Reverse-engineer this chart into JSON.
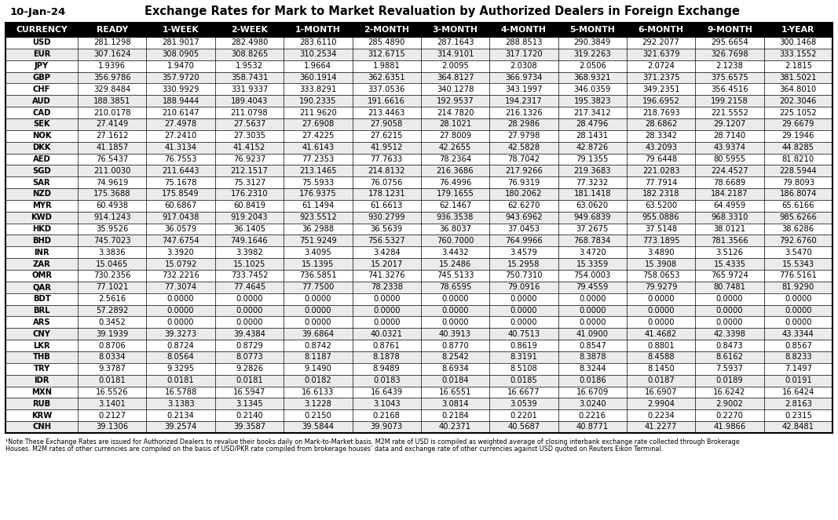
{
  "title": "Exchange Rates for Mark to Market Revaluation by Authorized Dealers in Foreign Exchange",
  "date": "10-Jan-24",
  "columns": [
    "CURRENCY",
    "READY",
    "1-WEEK",
    "2-WEEK",
    "1-MONTH",
    "2-MONTH",
    "3-MONTH",
    "4-MONTH",
    "5-MONTH",
    "6-MONTH",
    "9-MONTH",
    "1-YEAR"
  ],
  "rows": [
    [
      "USD",
      "281.1298",
      "281.9017",
      "282.4980",
      "283.6110",
      "285.4890",
      "287.1643",
      "288.8513",
      "290.3849",
      "292.2077",
      "295.6654",
      "300.1468"
    ],
    [
      "EUR",
      "307.1624",
      "308.0905",
      "308.8265",
      "310.2534",
      "312.6715",
      "314.9101",
      "317.1720",
      "319.2263",
      "321.6379",
      "326.7698",
      "333.1552"
    ],
    [
      "JPY",
      "1.9396",
      "1.9470",
      "1.9532",
      "1.9664",
      "1.9881",
      "2.0095",
      "2.0308",
      "2.0506",
      "2.0724",
      "2.1238",
      "2.1815"
    ],
    [
      "GBP",
      "356.9786",
      "357.9720",
      "358.7431",
      "360.1914",
      "362.6351",
      "364.8127",
      "366.9734",
      "368.9321",
      "371.2375",
      "375.6575",
      "381.5021"
    ],
    [
      "CHF",
      "329.8484",
      "330.9929",
      "331.9337",
      "333.8291",
      "337.0536",
      "340.1278",
      "343.1997",
      "346.0359",
      "349.2351",
      "356.4516",
      "364.8010"
    ],
    [
      "AUD",
      "188.3851",
      "188.9444",
      "189.4043",
      "190.2335",
      "191.6616",
      "192.9537",
      "194.2317",
      "195.3823",
      "196.6952",
      "199.2158",
      "202.3046"
    ],
    [
      "CAD",
      "210.0178",
      "210.6147",
      "211.0798",
      "211.9620",
      "213.4463",
      "214.7820",
      "216.1326",
      "217.3412",
      "218.7693",
      "221.5552",
      "225.1052"
    ],
    [
      "SEK",
      "27.4149",
      "27.4978",
      "27.5637",
      "27.6908",
      "27.9058",
      "28.1021",
      "28.2986",
      "28.4796",
      "28.6862",
      "29.1207",
      "29.6679"
    ],
    [
      "NOK",
      "27.1612",
      "27.2410",
      "27.3035",
      "27.4225",
      "27.6215",
      "27.8009",
      "27.9798",
      "28.1431",
      "28.3342",
      "28.7140",
      "29.1946"
    ],
    [
      "DKK",
      "41.1857",
      "41.3134",
      "41.4152",
      "41.6143",
      "41.9512",
      "42.2655",
      "42.5828",
      "42.8726",
      "43.2093",
      "43.9374",
      "44.8285"
    ],
    [
      "AED",
      "76.5437",
      "76.7553",
      "76.9237",
      "77.2353",
      "77.7633",
      "78.2364",
      "78.7042",
      "79.1355",
      "79.6448",
      "80.5955",
      "81.8210"
    ],
    [
      "SGD",
      "211.0030",
      "211.6443",
      "212.1517",
      "213.1465",
      "214.8132",
      "216.3686",
      "217.9266",
      "219.3683",
      "221.0283",
      "224.4527",
      "228.5944"
    ],
    [
      "SAR",
      "74.9619",
      "75.1678",
      "75.3127",
      "75.5933",
      "76.0756",
      "76.4996",
      "76.9319",
      "77.3232",
      "77.7914",
      "78.6689",
      "79.8093"
    ],
    [
      "NZD",
      "175.3688",
      "175.8549",
      "176.2310",
      "176.9375",
      "178.1231",
      "179.1655",
      "180.2062",
      "181.1418",
      "182.2318",
      "184.2187",
      "186.8074"
    ],
    [
      "MYR",
      "60.4938",
      "60.6867",
      "60.8419",
      "61.1494",
      "61.6613",
      "62.1467",
      "62.6270",
      "63.0620",
      "63.5200",
      "64.4959",
      "65.6166"
    ],
    [
      "KWD",
      "914.1243",
      "917.0438",
      "919.2043",
      "923.5512",
      "930.2799",
      "936.3538",
      "943.6962",
      "949.6839",
      "955.0886",
      "968.3310",
      "985.6266"
    ],
    [
      "HKD",
      "35.9526",
      "36.0579",
      "36.1405",
      "36.2988",
      "36.5639",
      "36.8037",
      "37.0453",
      "37.2675",
      "37.5148",
      "38.0121",
      "38.6286"
    ],
    [
      "BHD",
      "745.7023",
      "747.6754",
      "749.1646",
      "751.9249",
      "756.5327",
      "760.7000",
      "764.9966",
      "768.7834",
      "773.1895",
      "781.3566",
      "792.6760"
    ],
    [
      "INR",
      "3.3836",
      "3.3920",
      "3.3982",
      "3.4095",
      "3.4284",
      "3.4432",
      "3.4579",
      "3.4720",
      "3.4890",
      "3.5126",
      "3.5470"
    ],
    [
      "ZAR",
      "15.0465",
      "15.0792",
      "15.1025",
      "15.1395",
      "15.2017",
      "15.2486",
      "15.2958",
      "15.3359",
      "15.3908",
      "15.4335",
      "15.5343"
    ],
    [
      "OMR",
      "730.2356",
      "732.2216",
      "733.7452",
      "736.5851",
      "741.3276",
      "745.5133",
      "750.7310",
      "754.0003",
      "758.0653",
      "765.9724",
      "776.5161"
    ],
    [
      "QAR",
      "77.1021",
      "77.3074",
      "77.4645",
      "77.7500",
      "78.2338",
      "78.6595",
      "79.0916",
      "79.4559",
      "79.9279",
      "80.7481",
      "81.9290"
    ],
    [
      "BDT",
      "2.5616",
      "0.0000",
      "0.0000",
      "0.0000",
      "0.0000",
      "0.0000",
      "0.0000",
      "0.0000",
      "0.0000",
      "0.0000",
      "0.0000"
    ],
    [
      "BRL",
      "57.2892",
      "0.0000",
      "0.0000",
      "0.0000",
      "0.0000",
      "0.0000",
      "0.0000",
      "0.0000",
      "0.0000",
      "0.0000",
      "0.0000"
    ],
    [
      "ARS",
      "0.3452",
      "0.0000",
      "0.0000",
      "0.0000",
      "0.0000",
      "0.0000",
      "0.0000",
      "0.0000",
      "0.0000",
      "0.0000",
      "0.0000"
    ],
    [
      "CNY",
      "39.1939",
      "39.3273",
      "39.4384",
      "39.6864",
      "40.0321",
      "40.3913",
      "40.7513",
      "41.0900",
      "41.4682",
      "42.3398",
      "43.3344"
    ],
    [
      "LKR",
      "0.8706",
      "0.8724",
      "0.8729",
      "0.8742",
      "0.8761",
      "0.8770",
      "0.8619",
      "0.8547",
      "0.8801",
      "0.8473",
      "0.8567"
    ],
    [
      "THB",
      "8.0334",
      "8.0564",
      "8.0773",
      "8.1187",
      "8.1878",
      "8.2542",
      "8.3191",
      "8.3878",
      "8.4588",
      "8.6162",
      "8.8233"
    ],
    [
      "TRY",
      "9.3787",
      "9.3295",
      "9.2826",
      "9.1490",
      "8.9489",
      "8.6934",
      "8.5108",
      "8.3244",
      "8.1450",
      "7.5937",
      "7.1497"
    ],
    [
      "IDR",
      "0.0181",
      "0.0181",
      "0.0181",
      "0.0182",
      "0.0183",
      "0.0184",
      "0.0185",
      "0.0186",
      "0.0187",
      "0.0189",
      "0.0191"
    ],
    [
      "MXN",
      "16.5526",
      "16.5788",
      "16.5947",
      "16.6133",
      "16.6439",
      "16.6551",
      "16.6677",
      "16.6709",
      "16.6907",
      "16.6242",
      "16.6424"
    ],
    [
      "RUB",
      "3.1401",
      "3.1383",
      "3.1345",
      "3.1228",
      "3.1043",
      "3.0814",
      "3.0539",
      "3.0240",
      "2.9904",
      "2.9002",
      "2.8163"
    ],
    [
      "KRW",
      "0.2127",
      "0.2134",
      "0.2140",
      "0.2150",
      "0.2168",
      "0.2184",
      "0.2201",
      "0.2216",
      "0.2234",
      "0.2270",
      "0.2315"
    ],
    [
      "CNH",
      "39.1306",
      "39.2574",
      "39.3587",
      "39.5844",
      "39.9073",
      "40.2371",
      "40.5687",
      "40.8771",
      "41.2277",
      "41.9866",
      "42.8481"
    ]
  ],
  "footnote_line1": "¹Note:These Exchange Rates are issued for Authorized Dealers to revalue their books daily on Mark-to-Market basis. M2M rate of USD is compiled as weighted average of closing interbank exchange rate collected through Brokerage",
  "footnote_line2": "Houses. M2M rates of other currencies are compiled on the basis of USD/PKR rate compiled from brokerage houses’ data and exchange rate of other currencies against USD quoted on Reuters Eikon Terminal.",
  "header_bg": "#000000",
  "header_fg": "#ffffff",
  "row_bg_odd": "#ffffff",
  "row_bg_even": "#ebebeb",
  "border_color": "#000000",
  "title_fontsize": 10.5,
  "date_fontsize": 9.5,
  "header_fontsize": 7.8,
  "cell_fontsize": 7.2,
  "footnote_fontsize": 5.8
}
